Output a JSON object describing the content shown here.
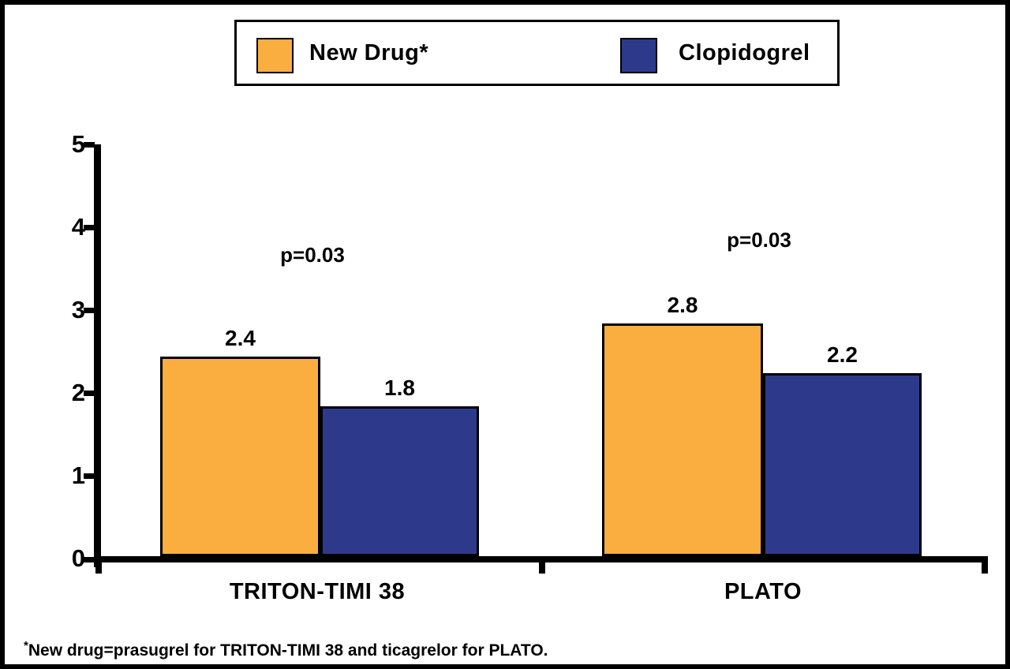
{
  "figure": {
    "background": "#ffffff",
    "border_color": "#000000"
  },
  "legend": {
    "items": [
      {
        "label": "New Drug*",
        "color": "#FAAE40"
      },
      {
        "label": "Clopidogrel",
        "color": "#2D3A8C"
      }
    ]
  },
  "chart_data": {
    "type": "bar",
    "title": "",
    "xlabel": "",
    "ylabel": "",
    "categories": [
      "TRITON-TIMI 38",
      "PLATO"
    ],
    "series": [
      {
        "name": "New Drug*",
        "color": "#FAAE40",
        "values": [
          2.4,
          2.8
        ]
      },
      {
        "name": "Clopidogrel",
        "color": "#2D3A8C",
        "values": [
          1.8,
          2.2
        ]
      }
    ],
    "p_values": [
      "p=0.03",
      "p=0.03"
    ],
    "yticks": [
      "0",
      "1",
      "2",
      "3",
      "4",
      "5"
    ],
    "ylim": [
      0,
      5
    ],
    "grid": false,
    "legend_position": "top"
  },
  "footnote": {
    "mark": "*",
    "text": "New drug=prasugrel for TRITON-TIMI 38 and ticagrelor for PLATO."
  }
}
